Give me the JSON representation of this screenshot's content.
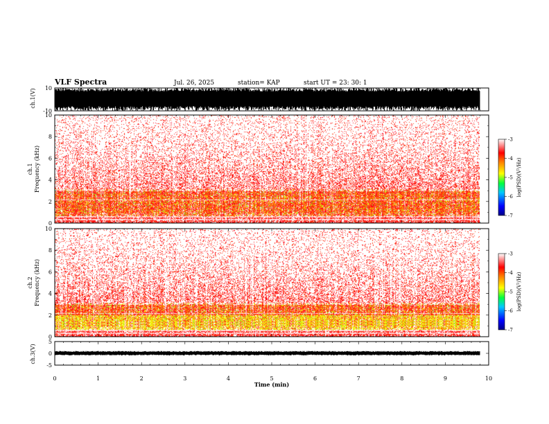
{
  "header": {
    "title": "VLF Spectra",
    "date": "Jul. 26, 2025",
    "station": "station= KAP",
    "start": "start UT =  23: 30: 1"
  },
  "chart_data": [
    {
      "type": "line",
      "name": "ch1-waveform",
      "ylabel": "ch.1(V)",
      "ylim": [
        -10,
        10
      ],
      "yticks": [
        "10",
        "-10"
      ],
      "xlim": [
        0,
        10
      ]
    },
    {
      "type": "heatmap",
      "name": "ch1-spectrogram",
      "ylabel_top": "ch.1",
      "ylabel": "Frequency (kHz)",
      "ylim": [
        0,
        10
      ],
      "yticks": [
        "0",
        "2",
        "4",
        "6",
        "8",
        "10"
      ],
      "xlim": [
        0,
        10
      ],
      "data_extent_min": 9.8,
      "colorbar": {
        "label": "log(PSD)(V²/Hz)",
        "range": [
          -7,
          -3
        ],
        "ticks": [
          "-3",
          "-4",
          "-5",
          "-6",
          "-7"
        ]
      }
    },
    {
      "type": "heatmap",
      "name": "ch2-spectrogram",
      "ylabel_top": "ch.2",
      "ylabel": "Frequency (kHz)",
      "ylim": [
        0,
        10
      ],
      "yticks": [
        "0",
        "2",
        "4",
        "6",
        "8",
        "10"
      ],
      "xlim": [
        0,
        10
      ],
      "data_extent_min": 9.8,
      "colorbar": {
        "label": "log(PSD)(V²/Hz)",
        "range": [
          -7,
          -3
        ],
        "ticks": [
          "-3",
          "-4",
          "-5",
          "-6",
          "-7"
        ]
      }
    },
    {
      "type": "line",
      "name": "ch3-waveform",
      "ylabel": "ch.3(V)",
      "ylim": [
        -5,
        5
      ],
      "yticks": [
        "5",
        "0",
        "-5"
      ],
      "xlim": [
        0,
        10
      ],
      "xlabel": "Time (min)",
      "xticks": [
        "0",
        "1",
        "2",
        "3",
        "4",
        "5",
        "6",
        "7",
        "8",
        "9",
        "10"
      ]
    }
  ]
}
